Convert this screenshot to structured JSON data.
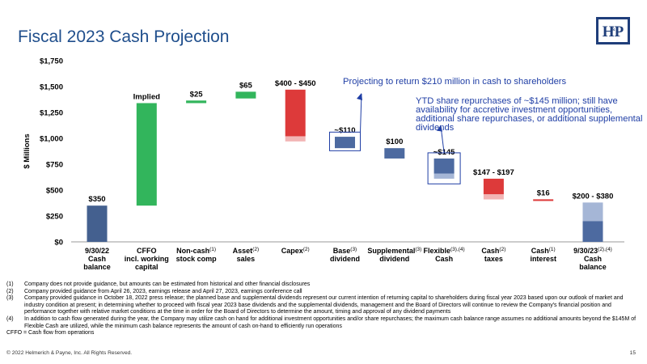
{
  "title": "Fiscal 2023 Cash Projection",
  "logo": {
    "text": "H P",
    "amp": "&"
  },
  "annotation_main": "Projecting to return $210 million in cash to shareholders",
  "annotation_sub": "YTD share repurchases of ~$145 million; still have availability for accretive investment opportunities, additional share repurchases, or additional supplemental dividends",
  "chart_data": {
    "type": "bar",
    "subtype": "waterfall",
    "ylabel": "$ Millions",
    "ylim": [
      0,
      1750
    ],
    "yticks": [
      0,
      250,
      500,
      750,
      1000,
      1250,
      1500,
      1750
    ],
    "ytick_labels": [
      "$0",
      "$250",
      "$500",
      "$750",
      "$1,000",
      "$1,250",
      "$1,500",
      "$1,750"
    ],
    "categories": [
      {
        "lines": [
          "9/30/22",
          "Cash",
          "balance"
        ],
        "sup": ""
      },
      {
        "lines": [
          "CFFO",
          "incl. working",
          "capital"
        ],
        "sup": ""
      },
      {
        "lines": [
          "Non-cash",
          "stock comp"
        ],
        "sup": "(1)"
      },
      {
        "lines": [
          "Asset",
          "sales"
        ],
        "sup": "(2)"
      },
      {
        "lines": [
          "Capex"
        ],
        "sup": "(2)"
      },
      {
        "lines": [
          "Base",
          "dividend"
        ],
        "sup": "(3)"
      },
      {
        "lines": [
          "Supplemental",
          "dividend"
        ],
        "sup": "(3)"
      },
      {
        "lines": [
          "Flexible",
          "Cash"
        ],
        "sup": "(3),(4)"
      },
      {
        "lines": [
          "Cash",
          "taxes"
        ],
        "sup": "(2)"
      },
      {
        "lines": [
          "Cash",
          "interest"
        ],
        "sup": "(1)"
      },
      {
        "lines": [
          "9/30/23",
          "Cash",
          "balance"
        ],
        "sup": "(2),(4)"
      }
    ],
    "bars": [
      {
        "bottom": 0,
        "top": 350,
        "light_bottom": null,
        "light_top": null,
        "color": "dark_blue",
        "label": "$350"
      },
      {
        "bottom": 350,
        "top": 1340,
        "light_bottom": null,
        "light_top": null,
        "color": "green",
        "label": "Implied"
      },
      {
        "bottom": 1340,
        "top": 1365,
        "light_bottom": null,
        "light_top": null,
        "color": "green",
        "label": "$25"
      },
      {
        "bottom": 1385,
        "top": 1450,
        "light_bottom": null,
        "light_top": null,
        "color": "green",
        "label": "$65"
      },
      {
        "bottom": 1020,
        "top": 1470,
        "light_bottom": 970,
        "light_top": 1020,
        "color": "red",
        "label": "$400 - $450"
      },
      {
        "bottom": 905,
        "top": 1015,
        "light_bottom": null,
        "light_top": null,
        "color": "blue",
        "label": "~$110"
      },
      {
        "bottom": 805,
        "top": 905,
        "light_bottom": null,
        "light_top": null,
        "color": "blue",
        "label": "$100"
      },
      {
        "bottom": 660,
        "top": 805,
        "light_bottom": 610,
        "light_top": 660,
        "color": "blue",
        "label": "~$145"
      },
      {
        "bottom": 460,
        "top": 610,
        "light_bottom": 410,
        "light_top": 460,
        "color": "red",
        "label": "$147 - $197"
      },
      {
        "bottom": 395,
        "top": 411,
        "light_bottom": null,
        "light_top": null,
        "color": "red",
        "label": "$16"
      },
      {
        "bottom": 0,
        "top": 200,
        "light_bottom": 200,
        "light_top": 380,
        "color": "blue",
        "label": "$200 - $380"
      }
    ],
    "colors": {
      "dark_blue": "#44608f",
      "blue": "#4d6aa0",
      "light_blue": "#a5b6d6",
      "green": "#32b55c",
      "red": "#dd3a3a",
      "light_red": "#f2b5b5",
      "annotation": "#1f3ea5"
    },
    "grid": false,
    "legend": "none"
  },
  "footnotes": [
    {
      "num": "(1)",
      "text": "Company does not provide guidance, but amounts can be estimated from historical and other financial disclosures"
    },
    {
      "num": "(2)",
      "text": "Company provided guidance from April 26, 2023, earnings release and April 27, 2023, earnings conference call"
    },
    {
      "num": "(3)",
      "text": "Company provided guidance in October 18, 2022 press release; the planned base and supplemental dividends represent our current intention of returning capital to shareholders during fiscal year 2023 based upon our outlook of market and industry condition at present; in determining whether to proceed with fiscal year 2023 base dividends and the supplemental dividends, management and the Board of Directors will continue to review the Company's financial position and performance together with relative market conditions at the time in order for the Board of Directors to determine the amount, timing and approval of any dividend payments"
    },
    {
      "num": "(4)",
      "text": "In addition to cash flow generated during the year, the Company may utilize cash on hand for additional investment opportunities and/or share repurchases; the maximum cash balance range assumes no additional amounts beyond the $145M of Flexible Cash are utilized, while the minimum cash balance represents the amount of cash on-hand to efficiently run operations"
    },
    {
      "num": "",
      "text": "CFFO = Cash flow from operations"
    }
  ],
  "copyright": "© 2022 Helmerich & Payne, Inc.  All Rights Reserved.",
  "page_number": "15"
}
